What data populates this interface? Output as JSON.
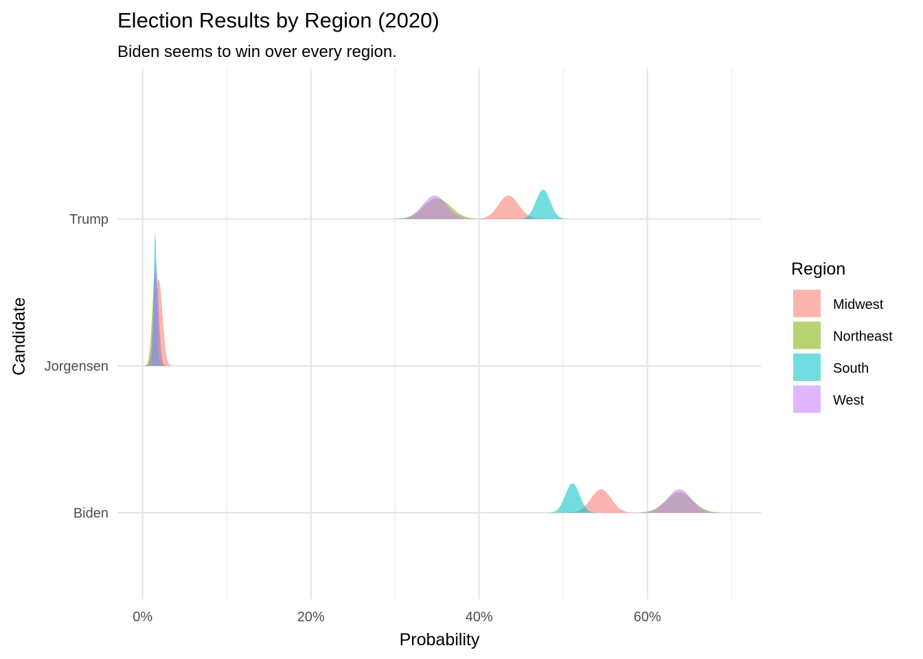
{
  "chart_data": {
    "type": "area",
    "subtype": "ridgeline-density",
    "title": "Election Results by Region (2020)",
    "subtitle": "Biden seems to win over every region.",
    "xlabel": "Probability",
    "ylabel": "Candidate",
    "xlim": [
      -0.03,
      0.735
    ],
    "x_ticks": [
      0,
      0.2,
      0.4,
      0.6
    ],
    "x_tick_labels": [
      "0%",
      "20%",
      "40%",
      "60%"
    ],
    "x_minor_ticks": [
      0.1,
      0.3,
      0.5,
      0.7
    ],
    "categories": [
      "Biden",
      "Jorgensen",
      "Trump"
    ],
    "grid": true,
    "legend": {
      "title": "Region",
      "position": "right"
    },
    "series": [
      {
        "name": "Midwest",
        "color": "#F8766D",
        "peaks": [
          {
            "candidate": "Trump",
            "mean": 0.435,
            "sd": 0.012,
            "height": 0.16
          },
          {
            "candidate": "Jorgensen",
            "mean": 0.019,
            "sd": 0.0045,
            "height": 0.59
          },
          {
            "candidate": "Biden",
            "mean": 0.545,
            "sd": 0.012,
            "height": 0.16
          }
        ]
      },
      {
        "name": "Northeast",
        "color": "#7CAE00",
        "peaks": [
          {
            "candidate": "Trump",
            "mean": 0.35,
            "sd": 0.016,
            "height": 0.14
          },
          {
            "candidate": "Jorgensen",
            "mean": 0.015,
            "sd": 0.0035,
            "height": 0.64
          },
          {
            "candidate": "Biden",
            "mean": 0.638,
            "sd": 0.016,
            "height": 0.14
          }
        ]
      },
      {
        "name": "South",
        "color": "#00BFC4",
        "peaks": [
          {
            "candidate": "Trump",
            "mean": 0.476,
            "sd": 0.0085,
            "height": 0.2
          },
          {
            "candidate": "Jorgensen",
            "mean": 0.0148,
            "sd": 0.0018,
            "height": 0.9
          },
          {
            "candidate": "Biden",
            "mean": 0.511,
            "sd": 0.0085,
            "height": 0.2
          }
        ]
      },
      {
        "name": "West",
        "color": "#C77CFF",
        "peaks": [
          {
            "candidate": "Trump",
            "mean": 0.347,
            "sd": 0.014,
            "height": 0.16
          },
          {
            "candidate": "Jorgensen",
            "mean": 0.016,
            "sd": 0.003,
            "height": 0.7
          },
          {
            "candidate": "Biden",
            "mean": 0.638,
            "sd": 0.014,
            "height": 0.16
          }
        ]
      }
    ]
  }
}
